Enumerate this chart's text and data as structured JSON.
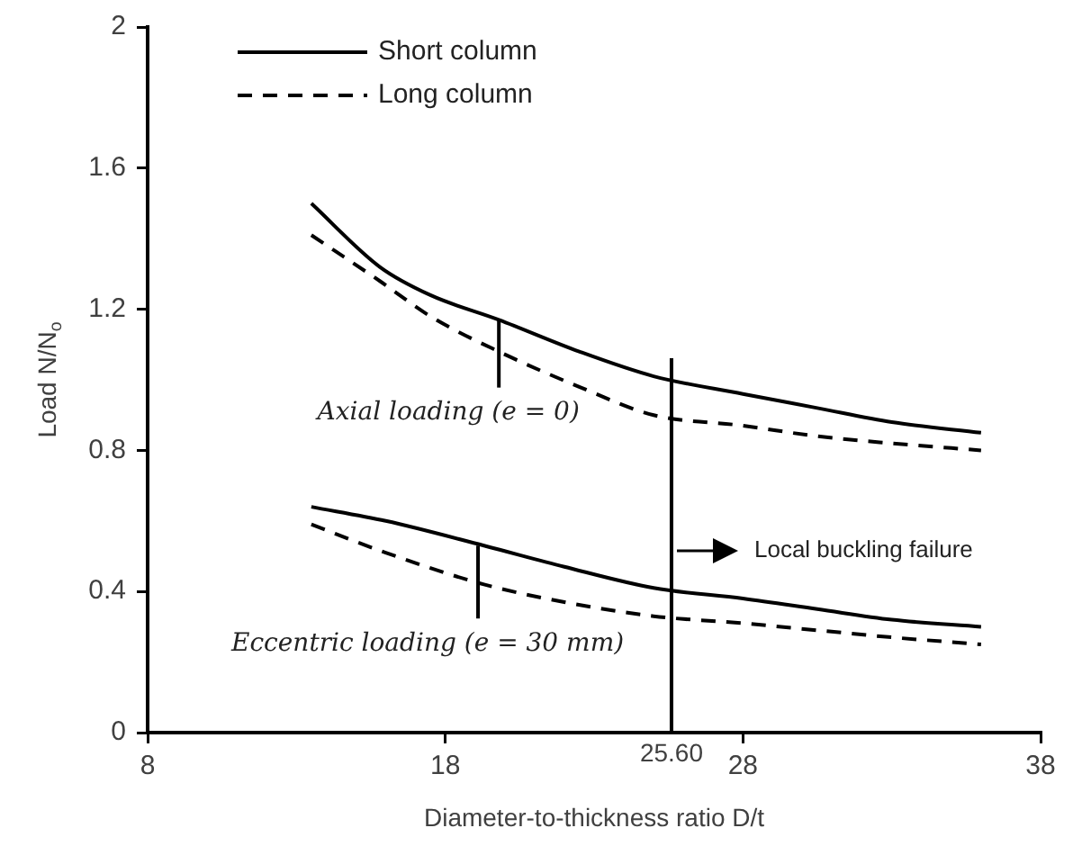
{
  "chart_data": {
    "type": "line",
    "xlabel": "Diameter-to-thickness ratio D/t",
    "ylabel": "Load N/N$_{o}$",
    "xlim": [
      8,
      38
    ],
    "xticks": [
      8,
      18,
      28,
      38
    ],
    "ylim": [
      0,
      2
    ],
    "yticks": [
      0,
      0.4,
      0.8,
      1.2,
      1.6,
      2
    ],
    "grid": false,
    "legend": "top left",
    "marker": "none",
    "series": [
      {
        "name": "Short column",
        "color": "#000000",
        "line_style": "solid",
        "x": [
          13.5,
          15.8,
          17.5,
          19.8,
          22.5,
          25.0,
          28,
          30.5,
          33,
          36
        ],
        "values": [
          1.5,
          1.32,
          1.24,
          1.17,
          1.08,
          1.01,
          0.96,
          0.92,
          0.88,
          0.85
        ]
      },
      {
        "name": "Long column",
        "color": "#000000",
        "line_style": "dashed",
        "x": [
          13.5,
          15.8,
          17.5,
          19.8,
          22.5,
          25.0,
          28,
          30.5,
          33,
          36
        ],
        "values": [
          1.41,
          1.28,
          1.18,
          1.08,
          0.98,
          0.9,
          0.87,
          0.84,
          0.82,
          0.8
        ]
      },
      {
        "color": "#000000",
        "line_style": "solid",
        "x": [
          13.5,
          16,
          19.3,
          22,
          25.0,
          28,
          30.5,
          33,
          36
        ],
        "values": [
          0.64,
          0.6,
          0.53,
          0.47,
          0.41,
          0.38,
          0.35,
          0.32,
          0.3
        ]
      },
      {
        "color": "#000000",
        "line_style": "dashed",
        "x": [
          13.5,
          16,
          19.3,
          22,
          25.0,
          28,
          30.5,
          33,
          36
        ],
        "values": [
          0.59,
          0.51,
          0.42,
          0.37,
          0.33,
          0.31,
          0.29,
          0.27,
          0.25
        ]
      }
    ],
    "ref_lines": [
      {
        "axis": "x",
        "value": 25.6,
        "label": "25.60"
      }
    ],
    "annotations": [
      {
        "text": "Axial loading (e = 0)",
        "x": 19.8,
        "y": 1.17
      },
      {
        "text": "Eccentric loading (e = 30 mm)",
        "x": 19.1,
        "y": 0.53
      },
      "Local buckling failure"
    ]
  }
}
